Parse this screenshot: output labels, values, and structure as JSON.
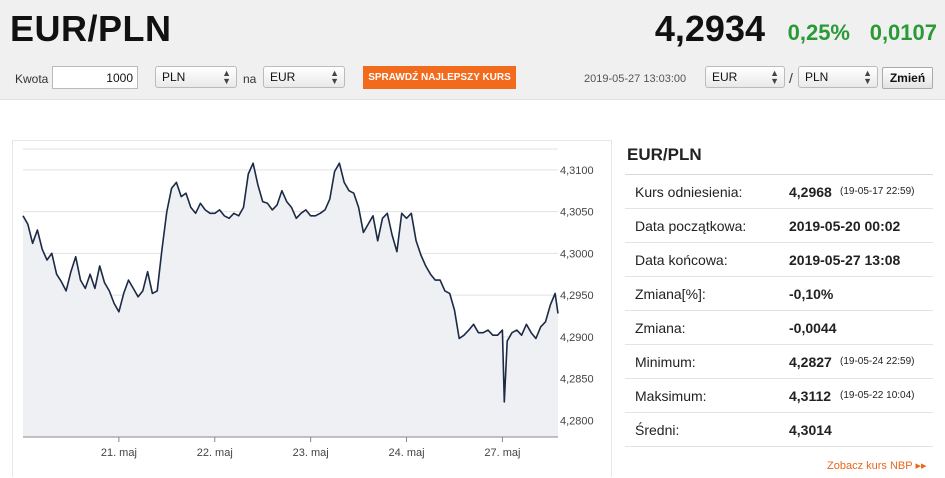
{
  "header": {
    "pair": "EUR/PLN",
    "rate": "4,2934",
    "change_pct": "0,25%",
    "change_abs": "0,0107"
  },
  "toolbar": {
    "amount_label": "Kwota",
    "amount_value": "1000",
    "from_currency": "PLN",
    "to_label": "na",
    "to_currency": "EUR",
    "best_rate_button": "SPRAWDŹ NAJLEPSZY KURS",
    "timestamp": "2019-05-27 13:03:00",
    "pair_base": "EUR",
    "pair_separator": "/",
    "pair_quote": "PLN",
    "change_button": "Zmień"
  },
  "stats": {
    "title": "EUR/PLN",
    "rows": [
      {
        "label": "Kurs odniesienia:",
        "value": "4,2968",
        "sub": "(19-05-17 22:59)"
      },
      {
        "label": "Data początkowa:",
        "value": "2019-05-20 00:02",
        "sub": ""
      },
      {
        "label": "Data końcowa:",
        "value": "2019-05-27 13:08",
        "sub": ""
      },
      {
        "label": "Zmiana[%]:",
        "value": "-0,10%",
        "sub": ""
      },
      {
        "label": "Zmiana:",
        "value": "-0,0044",
        "sub": ""
      },
      {
        "label": "Minimum:",
        "value": "4,2827",
        "sub": "(19-05-24 22:59)"
      },
      {
        "label": "Maksimum:",
        "value": "4,3112",
        "sub": "(19-05-22 10:04)"
      },
      {
        "label": "Średni:",
        "value": "4,3014",
        "sub": ""
      }
    ],
    "nbp_link": "Zobacz kurs NBP ▸▸"
  },
  "colors": {
    "line": "#1b2a45",
    "area": "#eef0f3",
    "positive": "#2a9a36",
    "accent": "#f26a1b"
  },
  "chart_data": {
    "type": "line",
    "ylim": [
      4.278,
      4.3125
    ],
    "yticks": [
      "4,3100",
      "4,3050",
      "4,3000",
      "4,2950",
      "4,2900",
      "4,2850",
      "4,2800"
    ],
    "ytick_values": [
      4.31,
      4.305,
      4.3,
      4.295,
      4.29,
      4.285,
      4.28
    ],
    "xticks": [
      "21. maj",
      "22. maj",
      "23. maj",
      "24. maj",
      "27. maj"
    ],
    "xtick_values": [
      1.0,
      2.0,
      3.0,
      4.0,
      5.0
    ],
    "xlim": [
      0.0,
      5.58
    ],
    "series": [
      {
        "x": [
          0.0,
          0.05,
          0.1,
          0.15,
          0.2,
          0.25,
          0.3,
          0.35,
          0.4,
          0.45,
          0.5,
          0.55,
          0.6,
          0.65,
          0.7,
          0.75,
          0.8,
          0.85,
          0.9,
          0.95,
          1.0,
          1.05,
          1.1,
          1.15,
          1.2,
          1.25,
          1.3,
          1.35,
          1.4,
          1.45,
          1.5,
          1.55,
          1.6,
          1.65,
          1.7,
          1.75,
          1.8,
          1.85,
          1.9,
          1.95,
          2.0,
          2.05,
          2.1,
          2.15,
          2.2,
          2.25,
          2.3,
          2.35,
          2.4,
          2.45,
          2.5,
          2.55,
          2.6,
          2.65,
          2.7,
          2.75,
          2.8,
          2.85,
          2.9,
          2.95,
          3.0,
          3.05,
          3.1,
          3.15,
          3.2,
          3.25,
          3.3,
          3.35,
          3.4,
          3.45,
          3.5,
          3.55,
          3.6,
          3.65,
          3.7,
          3.75,
          3.8,
          3.85,
          3.9,
          3.95,
          4.0,
          4.05,
          4.1,
          4.15,
          4.2,
          4.25,
          4.3,
          4.35,
          4.4,
          4.45,
          4.5,
          4.55,
          4.6,
          4.65,
          4.7,
          4.75,
          4.8,
          4.85,
          4.9,
          4.95,
          5.0,
          5.02,
          5.05,
          5.1,
          5.15,
          5.2,
          5.25,
          5.3,
          5.35,
          5.4,
          5.45,
          5.5,
          5.55,
          5.58
        ],
        "y": [
          4.3045,
          4.3035,
          4.3012,
          4.3028,
          4.3005,
          4.2992,
          4.3,
          4.2975,
          4.2966,
          4.2955,
          4.2978,
          4.2996,
          4.2968,
          4.2958,
          4.2975,
          4.2958,
          4.2985,
          4.2965,
          4.2955,
          4.294,
          4.293,
          4.2952,
          4.2968,
          4.2958,
          4.2948,
          4.2955,
          4.2978,
          4.2952,
          4.2955,
          4.3005,
          4.305,
          4.3078,
          4.3085,
          4.3068,
          4.3072,
          4.3055,
          4.3048,
          4.306,
          4.3052,
          4.3048,
          4.3048,
          4.3052,
          4.3045,
          4.3042,
          4.3048,
          4.3045,
          4.3055,
          4.3095,
          4.3108,
          4.3082,
          4.3062,
          4.306,
          4.3052,
          4.3058,
          4.3075,
          4.3062,
          4.3055,
          4.3042,
          4.3048,
          4.3052,
          4.3045,
          4.3045,
          4.3048,
          4.3052,
          4.3065,
          4.3098,
          4.3108,
          4.3085,
          4.3075,
          4.3072,
          4.3055,
          4.3025,
          4.3035,
          4.3045,
          4.3015,
          4.3042,
          4.3048,
          4.3022,
          4.3002,
          4.3048,
          4.3042,
          4.3048,
          4.3015,
          4.2998,
          4.2985,
          4.2975,
          4.2968,
          4.2968,
          4.2955,
          4.2952,
          4.2932,
          4.2898,
          4.2902,
          4.2908,
          4.2915,
          4.2905,
          4.2905,
          4.2908,
          4.2902,
          4.2902,
          4.2908,
          4.2822,
          4.2895,
          4.2905,
          4.2908,
          4.2902,
          4.2915,
          4.2905,
          4.2898,
          4.2912,
          4.2918,
          4.2938,
          4.2952,
          4.2928
        ]
      }
    ]
  }
}
